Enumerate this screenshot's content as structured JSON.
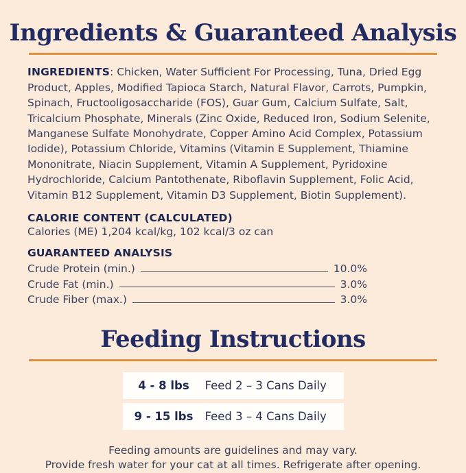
{
  "theme": {
    "background": "#fceadb",
    "accent_orange": "#e09140",
    "heading_navy": "#222c62",
    "body_text": "#39405c",
    "row_background": "#fffefb"
  },
  "ingredients_section": {
    "title": "Ingredients & Guaranteed Analysis",
    "ingredients_label": "INGREDIENTS",
    "ingredients_text": ": Chicken, Water Sufficient For Processing, Tuna, Dried Egg Product, Apples, Modified Tapioca Starch, Natural Flavor, Carrots, Pumpkin, Spinach, Fructooligosaccharide (FOS), Guar Gum, Calcium Sulfate, Salt, Tricalcium Phosphate, Minerals (Zinc Oxide, Reduced Iron, Sodium Selenite, Manganese Sulfate Monohydrate, Copper Amino Acid Complex, Potassium Iodide), Potassium Chloride, Vitamins (Vitamin E Supplement, Thiamine Mononitrate, Niacin Supplement, Vitamin A Supplement, Pyridoxine Hydrochloride, Calcium Pantothenate, Riboflavin Supplement, Folic Acid, Vitamin B12 Supplement, Vitamin D3 Supplement, Biotin Supplement).",
    "calorie_heading": "CALORIE CONTENT (CALCULATED)",
    "calorie_text": "Calories (ME) 1,204 kcal/kg, 102 kcal/3 oz can",
    "analysis_heading": "GUARANTEED ANALYSIS",
    "analysis_rows": [
      {
        "label": "Crude Protein (min.)",
        "value": "10.0%"
      },
      {
        "label": "Crude Fat (min.)",
        "value": "3.0%"
      },
      {
        "label": "Crude Fiber (max.)",
        "value": "3.0%"
      }
    ]
  },
  "feeding_section": {
    "title": "Feeding Instructions",
    "rows": [
      {
        "weight": "4 - 8 lbs",
        "amount": "Feed 2 – 3 Cans Daily"
      },
      {
        "weight": "9 - 15 lbs",
        "amount": "Feed 3 –  4 Cans Daily"
      }
    ],
    "note_line1": "Feeding amounts are guidelines and may vary.",
    "note_line2": "Provide fresh water for your cat at all times. Refrigerate after opening."
  }
}
